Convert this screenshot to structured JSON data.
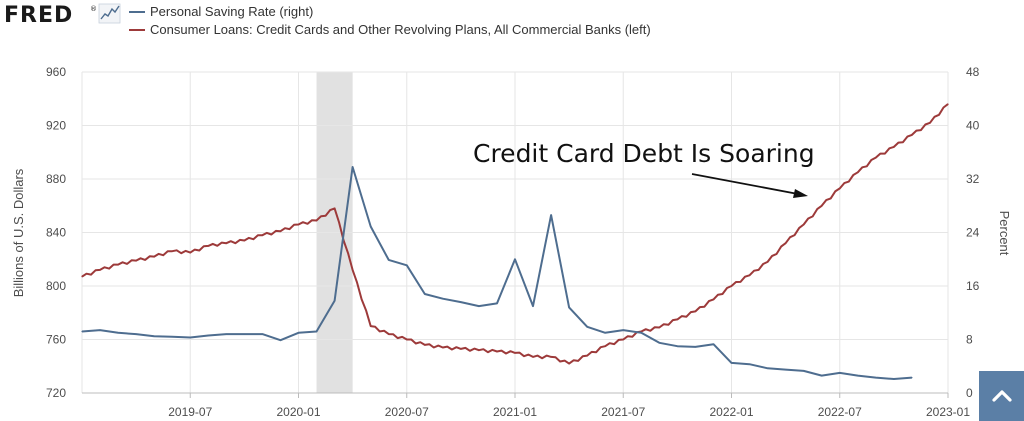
{
  "brand": {
    "logo_text": "FRED",
    "logo_mark": "®"
  },
  "colors": {
    "saving": "#4e6d8f",
    "credit": "#9d3a3a",
    "recession": "#e1e1e1",
    "grid": "#e6e6e6"
  },
  "icons": {
    "logo_chart": "line-graph-icon",
    "back_to_top": "chevron-up-icon"
  },
  "chart_data": {
    "type": "line",
    "annotation": "Credit Card Debt Is Soaring",
    "x_ticks": [
      "2019-07",
      "2020-01",
      "2020-07",
      "2021-01",
      "2021-07",
      "2022-01",
      "2022-07",
      "2023-01"
    ],
    "x_range": [
      "2019-01",
      "2023-01"
    ],
    "recession": {
      "start": "2020-02",
      "end": "2020-04"
    },
    "left_axis": {
      "label": "Billions of U.S. Dollars",
      "range": [
        720,
        960
      ],
      "ticks": [
        "720",
        "760",
        "800",
        "840",
        "880",
        "920",
        "960"
      ]
    },
    "right_axis": {
      "label": "Percent",
      "range": [
        0,
        48
      ],
      "ticks": [
        "0",
        "8",
        "16",
        "24",
        "32",
        "40",
        "48"
      ]
    },
    "series": [
      {
        "name": "Personal Saving Rate (right)",
        "axis": "right",
        "frequency": "monthly",
        "x": [
          "2019-01",
          "2019-02",
          "2019-03",
          "2019-04",
          "2019-05",
          "2019-06",
          "2019-07",
          "2019-08",
          "2019-09",
          "2019-10",
          "2019-11",
          "2019-12",
          "2020-01",
          "2020-02",
          "2020-03",
          "2020-04",
          "2020-05",
          "2020-06",
          "2020-07",
          "2020-08",
          "2020-09",
          "2020-10",
          "2020-11",
          "2020-12",
          "2021-01",
          "2021-02",
          "2021-03",
          "2021-04",
          "2021-05",
          "2021-06",
          "2021-07",
          "2021-08",
          "2021-09",
          "2021-10",
          "2021-11",
          "2021-12",
          "2022-01",
          "2022-02",
          "2022-03",
          "2022-04",
          "2022-05",
          "2022-06",
          "2022-07",
          "2022-08",
          "2022-09",
          "2022-10",
          "2022-11",
          "2022-12"
        ],
        "values": [
          9.2,
          9.4,
          9.0,
          8.8,
          8.5,
          8.4,
          8.3,
          8.6,
          8.8,
          8.8,
          8.8,
          7.9,
          9.0,
          9.2,
          13.8,
          33.8,
          24.9,
          19.9,
          19.1,
          14.8,
          14.1,
          13.6,
          13.0,
          13.4,
          20.0,
          13.0,
          26.6,
          12.8,
          9.9,
          9.0,
          9.4,
          9.0,
          7.5,
          7.0,
          6.9,
          7.3,
          4.5,
          4.3,
          3.7,
          3.5,
          3.3,
          2.6,
          3.0,
          2.6,
          2.3,
          2.1,
          2.3,
          null
        ]
      },
      {
        "name": "Consumer Loans: Credit Cards and Other Revolving Plans, All Commercial Banks (left)",
        "axis": "left",
        "frequency": "weekly",
        "x": [
          "2019-01",
          "2019-02",
          "2019-03",
          "2019-04",
          "2019-05",
          "2019-06",
          "2019-07",
          "2019-08",
          "2019-09",
          "2019-10",
          "2019-11",
          "2019-12",
          "2020-01",
          "2020-02",
          "2020-03",
          "2020-04",
          "2020-05",
          "2020-06",
          "2020-07",
          "2020-08",
          "2020-09",
          "2020-10",
          "2020-11",
          "2020-12",
          "2021-01",
          "2021-02",
          "2021-03",
          "2021-04",
          "2021-05",
          "2021-06",
          "2021-07",
          "2021-08",
          "2021-09",
          "2021-10",
          "2021-11",
          "2021-12",
          "2022-01",
          "2022-02",
          "2022-03",
          "2022-04",
          "2022-05",
          "2022-06",
          "2022-07",
          "2022-08",
          "2022-09",
          "2022-10",
          "2022-11",
          "2022-12",
          "2023-01"
        ],
        "values": [
          807,
          812,
          816,
          819,
          822,
          826,
          825,
          830,
          832,
          834,
          838,
          841,
          846,
          849,
          858,
          812,
          770,
          764,
          760,
          756,
          754,
          753,
          752,
          751,
          750,
          747,
          747,
          742,
          748,
          755,
          760,
          766,
          769,
          775,
          781,
          790,
          800,
          808,
          818,
          832,
          846,
          860,
          873,
          885,
          896,
          904,
          913,
          922,
          936
        ]
      }
    ]
  }
}
